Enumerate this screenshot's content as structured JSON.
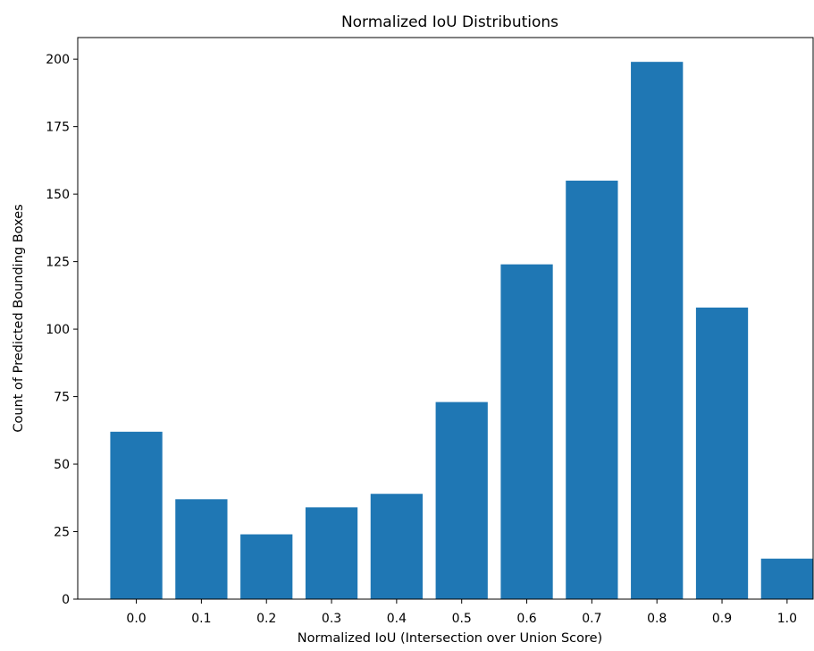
{
  "chart_data": {
    "type": "bar",
    "title": "Normalized IoU Distributions",
    "xlabel": "Normalized IoU (Intersection over Union Score)",
    "ylabel": "Count of Predicted Bounding Boxes",
    "categories": [
      "0.0",
      "0.1",
      "0.2",
      "0.3",
      "0.4",
      "0.5",
      "0.6",
      "0.7",
      "0.8",
      "0.9",
      "1.0"
    ],
    "values": [
      62,
      37,
      24,
      34,
      39,
      73,
      124,
      155,
      199,
      108,
      15
    ],
    "ylim": [
      0,
      208
    ],
    "yticks": [
      "0",
      "25",
      "50",
      "75",
      "100",
      "125",
      "150",
      "175",
      "200"
    ],
    "grid": false,
    "bar_color": "#1f77b4"
  }
}
